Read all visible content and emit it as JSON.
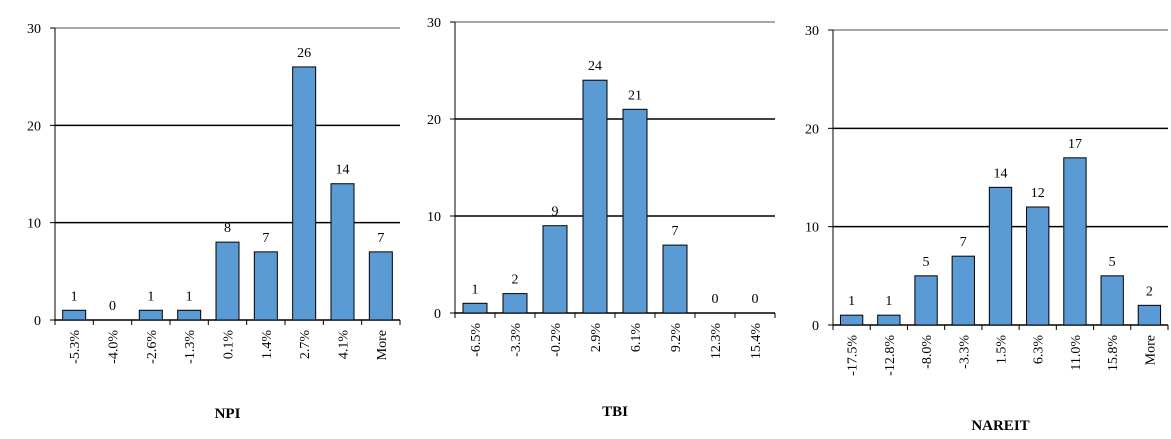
{
  "chart_data": [
    {
      "type": "bar",
      "title": "NPI",
      "categories": [
        "-5.3%",
        "-4.0%",
        "-2.6%",
        "-1.3%",
        "0.1%",
        "1.4%",
        "2.7%",
        "4.1%",
        "More"
      ],
      "values": [
        1,
        0,
        1,
        1,
        8,
        7,
        26,
        14,
        7
      ],
      "color": "#5b9bd5",
      "ylim": [
        0,
        30
      ],
      "yticks": [
        0,
        10,
        20,
        30
      ],
      "grid": true
    },
    {
      "type": "bar",
      "title": "TBI",
      "categories": [
        "-6.5%",
        "-3.3%",
        "-0.2%",
        "2.9%",
        "6.1%",
        "9.2%",
        "12.3%",
        "15.4%"
      ],
      "values": [
        1,
        2,
        9,
        24,
        21,
        7,
        0,
        0
      ],
      "color": "#5b9bd5",
      "ylim": [
        0,
        30
      ],
      "yticks": [
        0,
        10,
        20,
        30
      ],
      "grid": true
    },
    {
      "type": "bar",
      "title": "NAREIT",
      "categories": [
        "-17.5%",
        "-12.8%",
        "-8.0%",
        "-3.3%",
        "1.5%",
        "6.3%",
        "11.0%",
        "15.8%",
        "More"
      ],
      "values": [
        1,
        1,
        5,
        7,
        14,
        12,
        17,
        5,
        2
      ],
      "color": "#5b9bd5",
      "ylim": [
        0,
        30
      ],
      "yticks": [
        0,
        10,
        20,
        30
      ],
      "grid": true
    }
  ]
}
